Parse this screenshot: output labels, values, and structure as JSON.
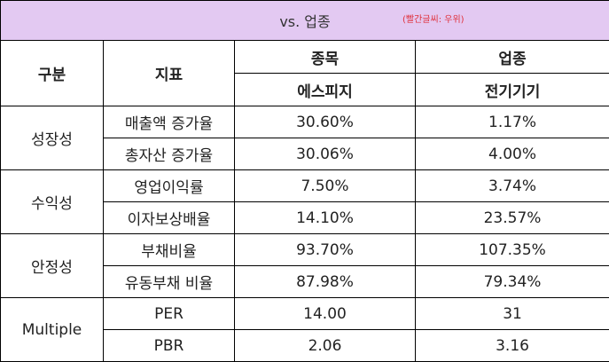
{
  "banner": {
    "title": "vs. 업종",
    "note": "(빨간글씨: 우위)"
  },
  "header": {
    "category": "구분",
    "indicator": "지표",
    "stock_group": "종목",
    "stock_name": "에스피지",
    "industry_group": "업종",
    "industry_name": "전기기기"
  },
  "groups": [
    {
      "name": "성장성",
      "rows": [
        {
          "indicator": "매출액 증가율",
          "stock": "30.60%",
          "industry": "1.17%",
          "winner": "stock"
        },
        {
          "indicator": "총자산 증가율",
          "stock": "30.06%",
          "industry": "4.00%",
          "winner": "stock"
        }
      ]
    },
    {
      "name": "수익성",
      "rows": [
        {
          "indicator": "영업이익률",
          "stock": "7.50%",
          "industry": "3.74%",
          "winner": "stock"
        },
        {
          "indicator": "이자보상배율",
          "stock": "14.10%",
          "industry": "23.57%",
          "winner": "industry"
        }
      ]
    },
    {
      "name": "안정성",
      "rows": [
        {
          "indicator": "부채비율",
          "stock": "93.70%",
          "industry": "107.35%",
          "winner": "stock"
        },
        {
          "indicator": "유동부채 비율",
          "stock": "87.98%",
          "industry": "79.34%",
          "winner": "industry"
        }
      ]
    },
    {
      "name": "Multiple",
      "rows": [
        {
          "indicator": "PER",
          "stock": "14.00",
          "industry": "31",
          "winner": "stock"
        },
        {
          "indicator": "PBR",
          "stock": "2.06",
          "industry": "3.16",
          "winner": "stock"
        }
      ]
    }
  ],
  "colors": {
    "banner_bg": "#e3c9f2",
    "advantage_text": "#e8363a"
  }
}
